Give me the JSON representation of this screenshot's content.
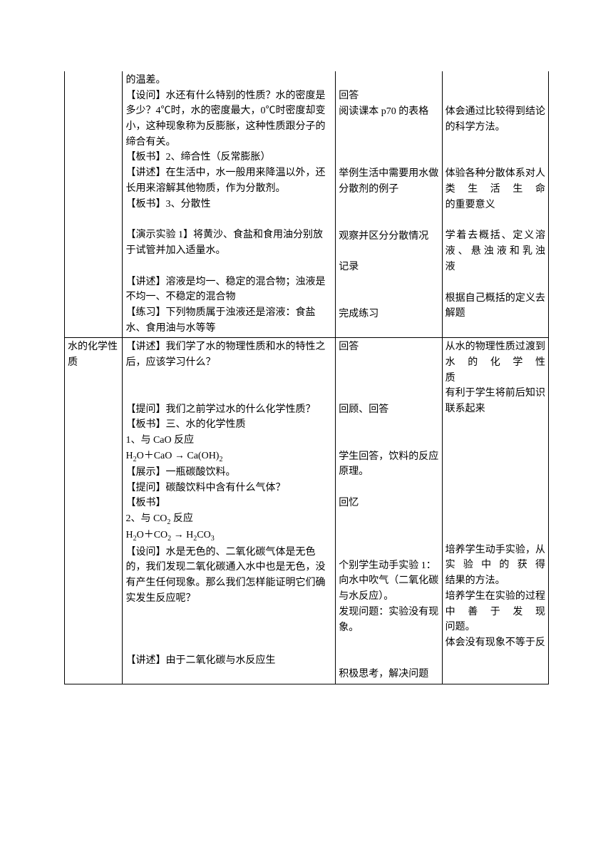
{
  "row1": {
    "col1": "",
    "col2_p1": "的温差。",
    "col2_p2": "【设问】水还有什么特别的性质？水的密度是多少？4℃时，水的密度最大，0℃时密度却变小，这种现象称为反膨胀，这种性质跟分子的缔合有关。",
    "col2_p3": "【板书】2、缔合性（反常膨胀）",
    "col2_p4": "【讲述】在生活中，水一般用来降温以外，还长用来溶解其他物质，作为分散剂。",
    "col2_p5": "【板书】3、分散性",
    "col2_p6": "【演示实验 1】将黄沙、食盐和食用油分别放于试管并加入适量水。",
    "col2_p7": "【讲述】溶液是均一、稳定的混合物；浊液是不均一、不稳定的混合物",
    "col2_p8": "【练习】下列物质属于浊液还是溶液：食盐水、食用油与水等等",
    "col3_p1": "回答",
    "col3_p2": "阅读课本 p70 的表格",
    "col3_p3": "举例生活中需要用水做分散剂的例子",
    "col3_p4": "观察并区分分散情况",
    "col3_p5": "记录",
    "col3_p6": "完成练习",
    "col4_p1": "体会通过比较得到结论",
    "col4_p1_last": "的科学方法。",
    "col4_p2": "体验各种分散体系对人类生活生命",
    "col4_p2_last": "的重要意义",
    "col4_p3": "学着去概括、定义溶液、悬浊液和乳浊",
    "col4_p3_last": "液",
    "col4_p4": "根据自己概括的定义去",
    "col4_p4_last": "解题"
  },
  "row2": {
    "col1": "水的化学性质",
    "col2_p1": "【讲述】我们学了水的物理性质和水的特性之后，应该学习什么？",
    "col2_p2": "【提问】我们之前学过水的什么化学性质？",
    "col2_p3": "【板书】三、水的化学性质",
    "col2_p4": "1、与 CaO 反应",
    "col2_p5_prefix": "H",
    "col2_p5_mid": "O＋CaO → Ca(OH)",
    "col2_p6": "【展示】一瓶碳酸饮料。",
    "col2_p7": "【提问】碳酸饮料中含有什么气体？",
    "col2_p8": "【板书】",
    "col2_p9": "2、与 CO",
    "col2_p9_suffix": " 反应",
    "col2_p10_a": "H",
    "col2_p10_b": "O＋CO",
    "col2_p10_c": " → H",
    "col2_p10_d": "CO",
    "col2_p11": "【设问】水是无色的、二氧化碳气体是无色的，我们发现二氧化碳通入水中也是无色，没有产生任何现象。那么我们怎样能证明它们确实发生反应呢？",
    "col2_p12": "【讲述】由于二氧化碳与水反应生",
    "col3_p1": "回答",
    "col3_p2": "回顾、回答",
    "col3_p3": "学生回答，饮料的反应原理。",
    "col3_p4": "回忆",
    "col3_p5": "个别学生动手实验 1：向水中吹气（二氧化碳与水反应）。",
    "col3_p6": "发现问题：实验没有现象。",
    "col3_p7": "积极思考，解决问题",
    "col4_p1": "从水的物理性质过渡到水的化学性",
    "col4_p1_last": "质",
    "col4_p2": "有利于学生将前后知识",
    "col4_p2_last": "联系起来",
    "col4_p3": "培养学生动手实验，从实验中的获得",
    "col4_p3_last": "结果的方法。",
    "col4_p4": "培养学生在实验的过程中善于发现",
    "col4_p4_last": "问题。",
    "col4_p5": "体会没有现象不等于反"
  }
}
